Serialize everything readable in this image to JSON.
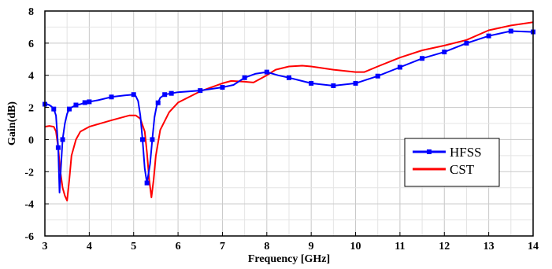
{
  "chart_data": {
    "type": "line",
    "title": "",
    "xlabel": "Frequency [GHz]",
    "ylabel": "Gain(dB)",
    "xlim": [
      3,
      14
    ],
    "ylim": [
      -6,
      8
    ],
    "xticks": [
      3,
      4,
      5,
      6,
      7,
      8,
      9,
      10,
      11,
      12,
      13,
      14
    ],
    "yticks": [
      -6,
      -4,
      -2,
      0,
      2,
      4,
      6,
      8
    ],
    "grid": true,
    "legend_position": "lower-right",
    "series": [
      {
        "name": "HFSS",
        "color": "#0000ff",
        "marker": "square",
        "x": [
          3.0,
          3.05,
          3.1,
          3.15,
          3.2,
          3.25,
          3.3,
          3.33,
          3.36,
          3.4,
          3.45,
          3.5,
          3.55,
          3.6,
          3.7,
          3.8,
          3.9,
          4.0,
          4.2,
          4.5,
          4.8,
          5.0,
          5.05,
          5.1,
          5.15,
          5.2,
          5.25,
          5.3,
          5.33,
          5.37,
          5.42,
          5.47,
          5.52,
          5.6,
          5.7,
          5.8,
          6.0,
          6.5,
          7.0,
          7.25,
          7.5,
          7.75,
          8.0,
          8.25,
          8.5,
          9.0,
          9.5,
          10.0,
          10.5,
          11.0,
          11.5,
          12.0,
          12.5,
          13.0,
          13.5,
          14.0
        ],
        "y": [
          2.2,
          2.2,
          2.15,
          2.05,
          1.9,
          1.5,
          -0.5,
          -3.3,
          -1.8,
          0.0,
          1.0,
          1.6,
          1.9,
          2.0,
          2.15,
          2.2,
          2.3,
          2.35,
          2.45,
          2.65,
          2.75,
          2.8,
          2.7,
          2.4,
          1.5,
          0.0,
          -1.8,
          -2.7,
          -2.2,
          -1.5,
          0.0,
          1.4,
          2.1,
          2.6,
          2.8,
          2.85,
          2.95,
          3.05,
          3.25,
          3.4,
          3.85,
          4.1,
          4.2,
          4.0,
          3.85,
          3.5,
          3.35,
          3.5,
          3.95,
          4.5,
          5.05,
          5.45,
          6.0,
          6.45,
          6.75,
          6.7
        ],
        "markers_at": [
          3.0,
          3.2,
          3.3,
          3.4,
          3.55,
          3.7,
          3.9,
          4.0,
          4.5,
          5.0,
          5.2,
          5.3,
          5.42,
          5.55,
          5.7,
          5.85,
          6.5,
          7.0,
          7.5,
          8.0,
          8.5,
          9.0,
          9.5,
          10.0,
          10.5,
          11.0,
          11.5,
          12.0,
          12.5,
          13.0,
          13.5,
          14.0
        ]
      },
      {
        "name": "CST",
        "color": "#ff0000",
        "x": [
          3.0,
          3.1,
          3.2,
          3.25,
          3.3,
          3.35,
          3.4,
          3.45,
          3.5,
          3.55,
          3.6,
          3.7,
          3.8,
          4.0,
          4.5,
          4.9,
          5.05,
          5.15,
          5.25,
          5.3,
          5.35,
          5.4,
          5.45,
          5.5,
          5.6,
          5.8,
          6.0,
          6.5,
          7.0,
          7.2,
          7.5,
          7.7,
          8.0,
          8.2,
          8.5,
          8.8,
          9.0,
          9.5,
          10.0,
          10.2,
          10.5,
          11.0,
          11.5,
          12.0,
          12.5,
          13.0,
          13.5,
          14.0
        ],
        "y": [
          0.8,
          0.85,
          0.8,
          0.5,
          -0.5,
          -2.0,
          -3.0,
          -3.5,
          -3.8,
          -2.5,
          -1.0,
          0.0,
          0.5,
          0.8,
          1.2,
          1.5,
          1.5,
          1.3,
          0.5,
          -0.8,
          -2.5,
          -3.6,
          -2.5,
          -1.0,
          0.6,
          1.7,
          2.3,
          3.0,
          3.5,
          3.65,
          3.6,
          3.55,
          4.0,
          4.35,
          4.55,
          4.6,
          4.55,
          4.35,
          4.2,
          4.2,
          4.55,
          5.1,
          5.55,
          5.85,
          6.2,
          6.8,
          7.1,
          7.3
        ]
      }
    ]
  }
}
